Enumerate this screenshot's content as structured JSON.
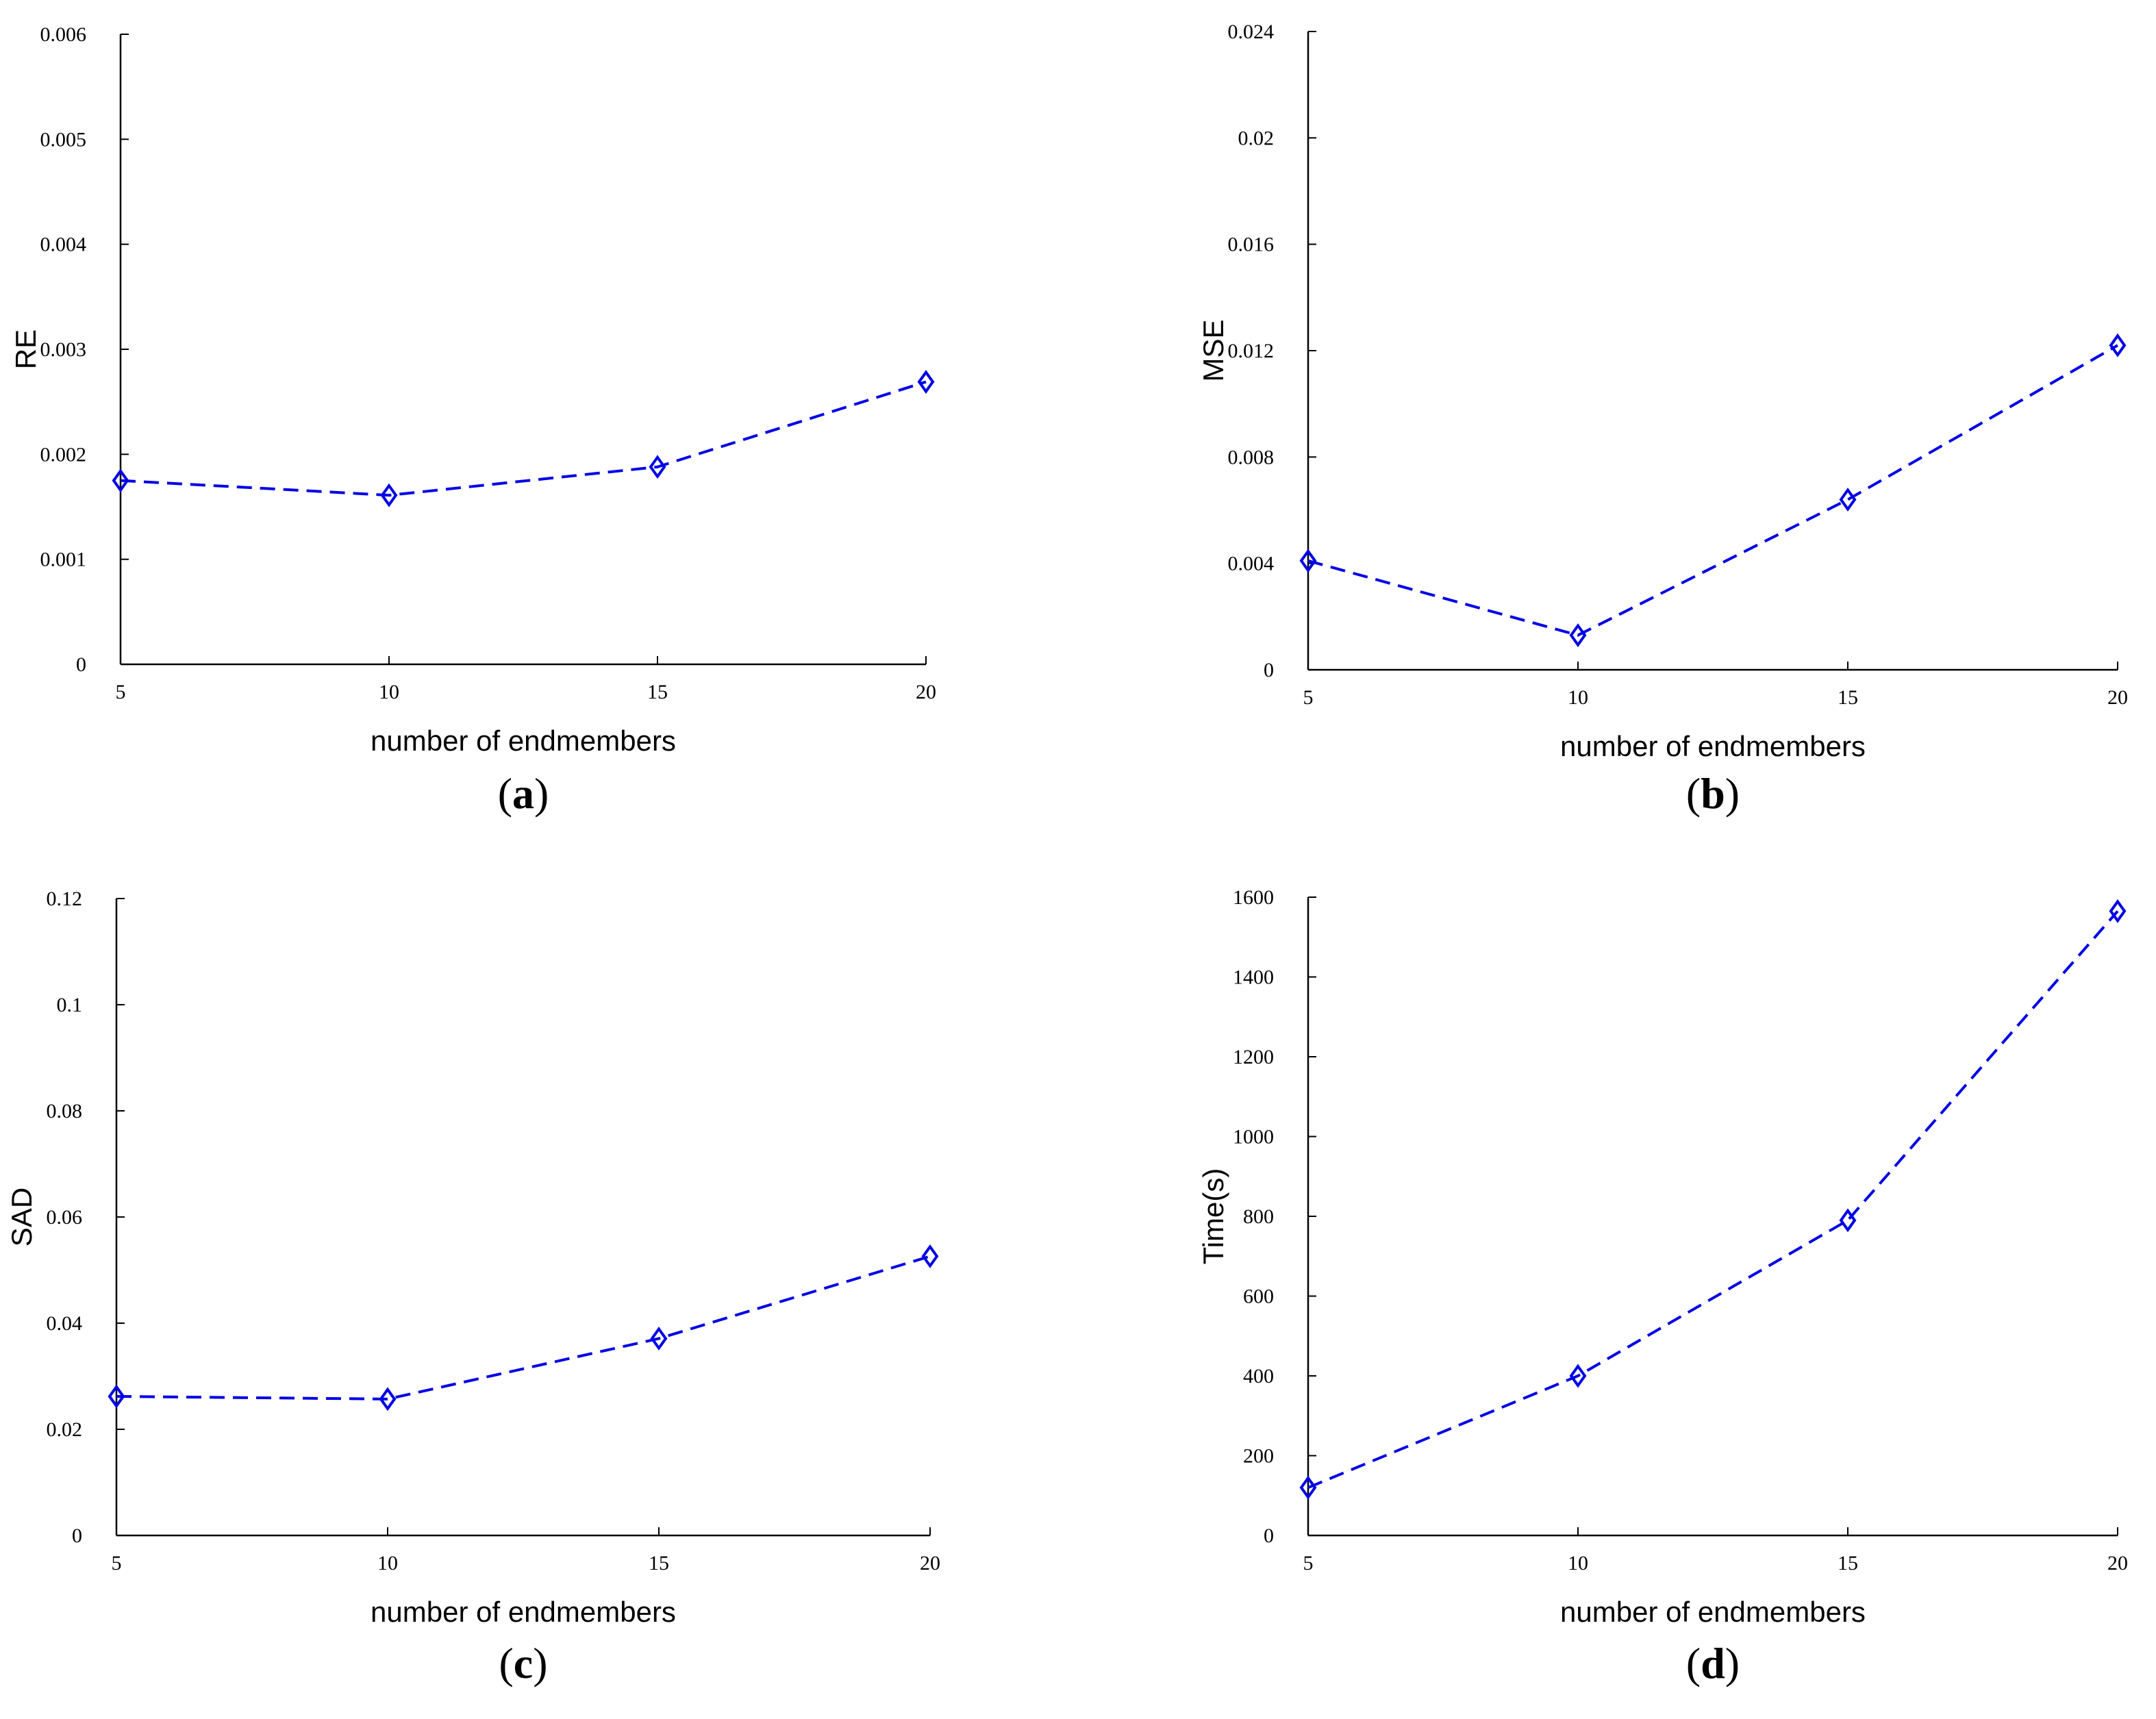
{
  "series_color": "#0000e6",
  "chart_data": [
    {
      "id": "a",
      "type": "line",
      "panel_label": "a",
      "xlabel": "number of endmembers",
      "ylabel": "RE",
      "x": [
        5,
        10,
        15,
        20
      ],
      "values": [
        0.00175,
        0.00161,
        0.00188,
        0.00269
      ],
      "xlim": [
        5,
        20
      ],
      "ylim": [
        0,
        0.006
      ],
      "xticks": [
        5,
        10,
        15,
        20
      ],
      "xtick_labels": [
        "5",
        "10",
        "15",
        "20"
      ],
      "yticks": [
        0,
        0.001,
        0.002,
        0.003,
        0.004,
        0.005,
        0.006
      ],
      "ytick_labels": [
        "0",
        "0.001",
        "0.002",
        "0.003",
        "0.004",
        "0.005",
        "0.006"
      ],
      "marker": "diamond",
      "line_style": "dashed",
      "grid": false
    },
    {
      "id": "b",
      "type": "line",
      "panel_label": "b",
      "xlabel": "number of endmembers",
      "ylabel": "MSE",
      "x": [
        5,
        10,
        15,
        20
      ],
      "values": [
        0.0041,
        0.0013,
        0.0064,
        0.0122
      ],
      "xlim": [
        5,
        20
      ],
      "ylim": [
        0,
        0.024
      ],
      "xticks": [
        5,
        10,
        15,
        20
      ],
      "xtick_labels": [
        "5",
        "10",
        "15",
        "20"
      ],
      "yticks": [
        0,
        0.004,
        0.008,
        0.012,
        0.016,
        0.02,
        0.024
      ],
      "ytick_labels": [
        "0",
        "0.004",
        "0.008",
        "0.012",
        "0.016",
        "0.02",
        "0.024"
      ],
      "marker": "diamond",
      "line_style": "dashed",
      "grid": false
    },
    {
      "id": "c",
      "type": "line",
      "panel_label": "c",
      "xlabel": "number of endmembers",
      "ylabel": "SAD",
      "x": [
        5,
        10,
        15,
        20
      ],
      "values": [
        0.0262,
        0.0257,
        0.0371,
        0.0526
      ],
      "xlim": [
        5,
        20
      ],
      "ylim": [
        0,
        0.12
      ],
      "xticks": [
        5,
        10,
        15,
        20
      ],
      "xtick_labels": [
        "5",
        "10",
        "15",
        "20"
      ],
      "yticks": [
        0,
        0.02,
        0.04,
        0.06,
        0.08,
        0.1,
        0.12
      ],
      "ytick_labels": [
        "0",
        "0.02",
        "0.04",
        "0.06",
        "0.08",
        "0.1",
        "0.12"
      ],
      "marker": "diamond",
      "line_style": "dashed",
      "grid": false
    },
    {
      "id": "d",
      "type": "line",
      "panel_label": "d",
      "xlabel": "number of endmembers",
      "ylabel": "Time(s)",
      "x": [
        5,
        10,
        15,
        20
      ],
      "values": [
        120,
        400,
        790,
        1565
      ],
      "xlim": [
        5,
        20
      ],
      "ylim": [
        0,
        1600
      ],
      "xticks": [
        5,
        10,
        15,
        20
      ],
      "xtick_labels": [
        "5",
        "10",
        "15",
        "20"
      ],
      "yticks": [
        0,
        200,
        400,
        600,
        800,
        1000,
        1200,
        1400,
        1600
      ],
      "ytick_labels": [
        "0",
        "200",
        "400",
        "600",
        "800",
        "1000",
        "1200",
        "1400",
        "1600"
      ],
      "marker": "diamond",
      "line_style": "dashed",
      "grid": false
    }
  ]
}
